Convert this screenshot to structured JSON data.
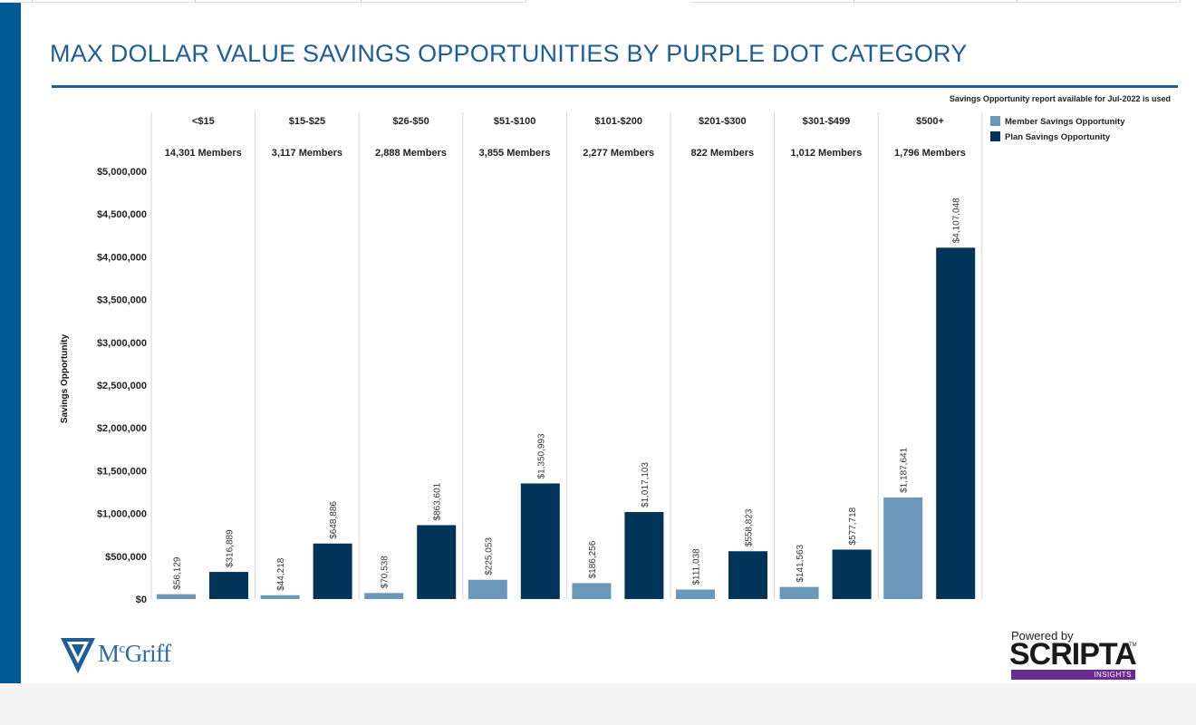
{
  "title": "MAX DOLLAR VALUE SAVINGS OPPORTUNITIES BY PURPLE DOT CATEGORY",
  "note": "Savings Opportunity report available for Jul-2022 is used",
  "colors": {
    "accent": "#1f5d99",
    "left_bar": "#005a94",
    "member_series": "#6b98b9",
    "plan_series": "#003459",
    "insights_band": "#6b2c91"
  },
  "chart_data": {
    "type": "bar",
    "title": "",
    "xlabel": "",
    "ylabel": "Savings Opportunity",
    "ylim": [
      0,
      5000000
    ],
    "yticks": [
      0,
      500000,
      1000000,
      1500000,
      2000000,
      2500000,
      3000000,
      3500000,
      4000000,
      4500000,
      5000000
    ],
    "ytick_labels": [
      "$0",
      "$500,000",
      "$1,000,000",
      "$1,500,000",
      "$2,000,000",
      "$2,500,000",
      "$3,000,000",
      "$3,500,000",
      "$4,000,000",
      "$4,500,000",
      "$5,000,000"
    ],
    "categories": [
      "<$15",
      "$15-$25",
      "$26-$50",
      "$51-$100",
      "$101-$200",
      "$201-$300",
      "$301-$499",
      "$500+"
    ],
    "members": [
      "14,301 Members",
      "3,117 Members",
      "2,888 Members",
      "3,855 Members",
      "2,277 Members",
      "822 Members",
      "1,012 Members",
      "1,796 Members"
    ],
    "legend_position": "top-right",
    "grid": false,
    "series": [
      {
        "name": "Member Savings Opportunity",
        "color": "#6b98b9",
        "values": [
          56129,
          44218,
          70538,
          225053,
          186256,
          111038,
          141563,
          1187641
        ],
        "labels": [
          "$56,129",
          "$44,218",
          "$70,538",
          "$225,053",
          "$186,256",
          "$111,038",
          "$141,563",
          "$1,187,641"
        ]
      },
      {
        "name": "Plan Savings Opportunity",
        "color": "#003459",
        "values": [
          316889,
          648886,
          863601,
          1350993,
          1017103,
          558823,
          577718,
          4107048
        ],
        "labels": [
          "$316,889",
          "$648,886",
          "$863,601",
          "$1,350,993",
          "$1,017,103",
          "$558,823",
          "$577,718",
          "$4,107,048"
        ]
      }
    ]
  },
  "footer": {
    "left_logo_prefix": "M",
    "left_logo_sup": "c",
    "left_logo_rest": "Griff",
    "powered_by": "Powered by",
    "brand": "SCRIPTA",
    "brand_tm": "TM",
    "brand_sub": "INSIGHTS",
    "shield_icon": "mcgriff-shield-icon"
  }
}
